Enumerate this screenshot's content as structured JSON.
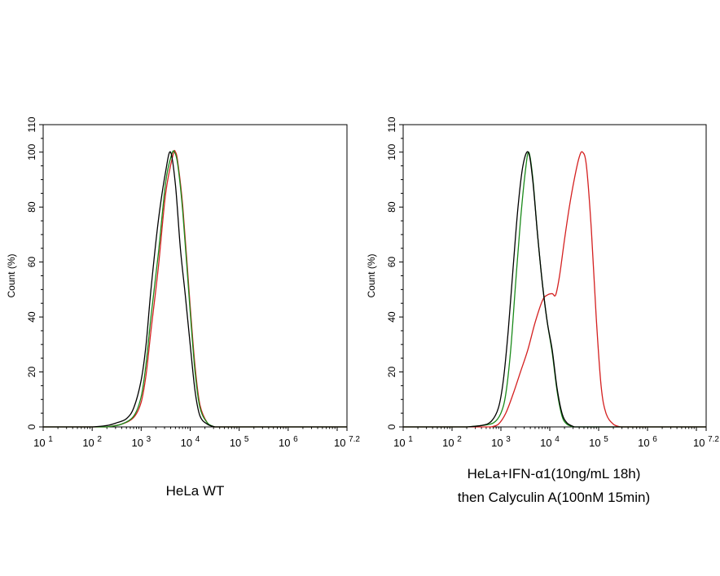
{
  "chart_data": [
    {
      "type": "line",
      "title": "HeLa WT",
      "title_lines": [
        "HeLa WT"
      ],
      "ylabel": "Count (%)",
      "xlabel": "",
      "x_scale": "log10",
      "xlim": [
        1,
        7.2
      ],
      "ylim": [
        0,
        110
      ],
      "x_tick_labels": [
        {
          "base": "10",
          "exp": "1"
        },
        {
          "base": "10",
          "exp": "2"
        },
        {
          "base": "10",
          "exp": "3"
        },
        {
          "base": "10",
          "exp": "4"
        },
        {
          "base": "10",
          "exp": "5"
        },
        {
          "base": "10",
          "exp": "6"
        },
        {
          "base": "10",
          "exp": "7.2"
        }
      ],
      "y_tick_labels": [
        "0",
        "20",
        "40",
        "60",
        "80",
        "100",
        "110"
      ],
      "grid": false,
      "series": [
        {
          "color": "#d42020",
          "x": [
            2.3,
            2.6,
            2.85,
            3.0,
            3.1,
            3.2,
            3.35,
            3.5,
            3.65,
            3.7,
            3.75,
            3.85,
            4.0,
            4.1,
            4.2,
            4.35,
            4.5
          ],
          "y": [
            0,
            1,
            3.5,
            9,
            19,
            35,
            58,
            85,
            99,
            100,
            96,
            80,
            44,
            22,
            8,
            1.5,
            0
          ]
        },
        {
          "color": "#1a8a1a",
          "x": [
            2.3,
            2.6,
            2.85,
            3.0,
            3.1,
            3.2,
            3.35,
            3.5,
            3.62,
            3.68,
            3.75,
            3.85,
            4.0,
            4.1,
            4.2,
            4.35,
            4.5
          ],
          "y": [
            0,
            1,
            4,
            11,
            23,
            40,
            63,
            89,
            99,
            100,
            95,
            78,
            42,
            20,
            7,
            1.5,
            0
          ]
        },
        {
          "color": "#000000",
          "x": [
            2.0,
            2.3,
            2.5,
            2.7,
            2.85,
            3.0,
            3.1,
            3.2,
            3.35,
            3.5,
            3.6,
            3.7,
            3.8,
            3.9,
            4.0,
            4.1,
            4.2,
            4.35,
            4.5
          ],
          "y": [
            0,
            0.5,
            1.5,
            3,
            7,
            17,
            30,
            50,
            75,
            93,
            100,
            88,
            65,
            48,
            30,
            13,
            4,
            1,
            0
          ]
        }
      ]
    },
    {
      "type": "line",
      "title": "HeLa+IFN-α1(10ng/mL 18h) then Calyculin A(100nM 15min)",
      "title_lines": [
        "HeLa+IFN-α1(10ng/mL 18h)",
        "then Calyculin A(100nM 15min)"
      ],
      "ylabel": "Count (%)",
      "xlabel": "",
      "x_scale": "log10",
      "xlim": [
        1,
        7.2
      ],
      "ylim": [
        0,
        110
      ],
      "x_tick_labels": [
        {
          "base": "10",
          "exp": "1"
        },
        {
          "base": "10",
          "exp": "2"
        },
        {
          "base": "10",
          "exp": "3"
        },
        {
          "base": "10",
          "exp": "4"
        },
        {
          "base": "10",
          "exp": "5"
        },
        {
          "base": "10",
          "exp": "6"
        },
        {
          "base": "10",
          "exp": "7.2"
        }
      ],
      "y_tick_labels": [
        "0",
        "20",
        "40",
        "60",
        "80",
        "100",
        "110"
      ],
      "grid": false,
      "series": [
        {
          "color": "#d42020",
          "x": [
            2.8,
            2.95,
            3.1,
            3.25,
            3.4,
            3.55,
            3.7,
            3.85,
            3.95,
            4.05,
            4.12,
            4.2,
            4.3,
            4.4,
            4.5,
            4.6,
            4.67,
            4.75,
            4.85,
            4.95,
            5.05,
            5.15,
            5.3,
            5.45
          ],
          "y": [
            0,
            1,
            5,
            12,
            20,
            28,
            38,
            46,
            48,
            48.5,
            48,
            55,
            68,
            80,
            90,
            98,
            100,
            95,
            72,
            40,
            15,
            5,
            1,
            0
          ]
        },
        {
          "color": "#1a8a1a",
          "x": [
            2.3,
            2.6,
            2.85,
            3.0,
            3.1,
            3.2,
            3.3,
            3.4,
            3.5,
            3.57,
            3.65,
            3.75,
            3.85,
            3.95,
            4.05,
            4.15,
            4.25,
            4.35,
            4.5
          ],
          "y": [
            0,
            0.5,
            1.5,
            5,
            12,
            28,
            52,
            75,
            93,
            100,
            91,
            70,
            52,
            38,
            27,
            13,
            4,
            1,
            0
          ]
        },
        {
          "color": "#000000",
          "x": [
            2.3,
            2.6,
            2.8,
            2.95,
            3.05,
            3.15,
            3.25,
            3.35,
            3.45,
            3.56,
            3.65,
            3.75,
            3.85,
            3.95,
            4.05,
            4.15,
            4.25,
            4.35,
            4.5
          ],
          "y": [
            0,
            0.5,
            2,
            7,
            17,
            35,
            58,
            80,
            95,
            100,
            90,
            70,
            52,
            38,
            28,
            14,
            5,
            1.5,
            0
          ]
        }
      ]
    }
  ]
}
